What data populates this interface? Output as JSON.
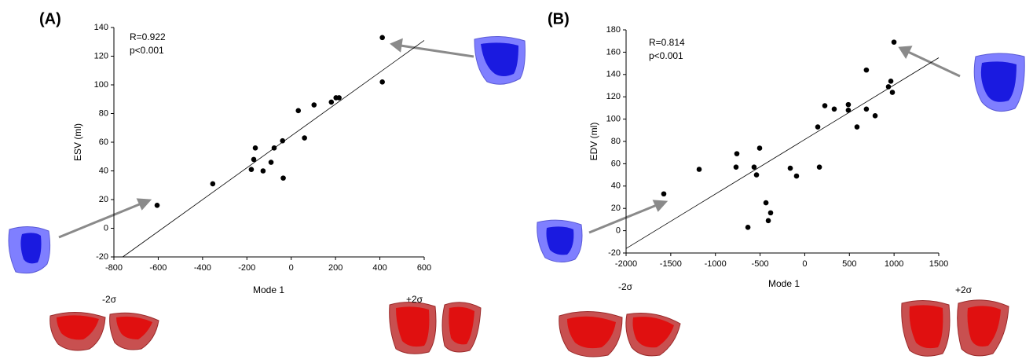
{
  "chart_data": [
    {
      "type": "scatter",
      "panel_label": "(A)",
      "x_label": "Mode 1",
      "y_label": "ESV (ml)",
      "annotations": [
        "R=0.922",
        "p<0.001"
      ],
      "shape_labels": [
        "-2σ",
        "+2σ"
      ],
      "x": [
        -605,
        -354,
        -180,
        -169,
        -162,
        -127,
        -91,
        -77,
        -39,
        -36,
        32,
        60,
        103,
        181,
        202,
        216,
        411,
        411
      ],
      "y": [
        16,
        31,
        41,
        48,
        56,
        40,
        46,
        56,
        61,
        35,
        82,
        63,
        86,
        88,
        91,
        91,
        102,
        133
      ],
      "fit_x": [
        -760,
        600
      ],
      "fit_y": [
        -20,
        131
      ],
      "xlim": [
        -800,
        600
      ],
      "ylim": [
        -20,
        140
      ],
      "xticks": [
        -800,
        -600,
        -400,
        -200,
        0,
        200,
        400,
        600
      ],
      "yticks": [
        -20,
        0,
        20,
        40,
        60,
        80,
        100,
        120,
        140
      ],
      "color": "#000000"
    },
    {
      "type": "scatter",
      "panel_label": "(B)",
      "x_label": "Mode 1",
      "y_label": "EDV (ml)",
      "annotations": [
        "R=0.814",
        "p<0.001"
      ],
      "shape_labels": [
        "-2σ",
        "+2σ"
      ],
      "x": [
        -1578,
        -1182,
        -760,
        -769,
        -505,
        -567,
        -540,
        -434,
        -382,
        -408,
        -636,
        -162,
        -92,
        146,
        164,
        225,
        330,
        488,
        488,
        585,
        690,
        690,
        788,
        937,
        964,
        981,
        999
      ],
      "y": [
        33,
        55,
        69,
        57,
        74,
        57,
        50,
        25,
        16,
        9,
        3,
        56,
        49,
        93,
        57,
        112,
        109,
        113,
        108,
        93,
        144,
        109,
        103,
        129,
        134,
        124,
        169
      ],
      "fit_x": [
        -2000,
        1500
      ],
      "fit_y": [
        -16,
        155
      ],
      "xlim": [
        -2000,
        1500
      ],
      "ylim": [
        -20,
        180
      ],
      "xticks": [
        -2000,
        -1500,
        -1000,
        -500,
        0,
        500,
        1000,
        1500
      ],
      "yticks": [
        -20,
        0,
        20,
        40,
        60,
        80,
        100,
        120,
        140,
        160,
        180
      ],
      "color": "#000000"
    }
  ]
}
